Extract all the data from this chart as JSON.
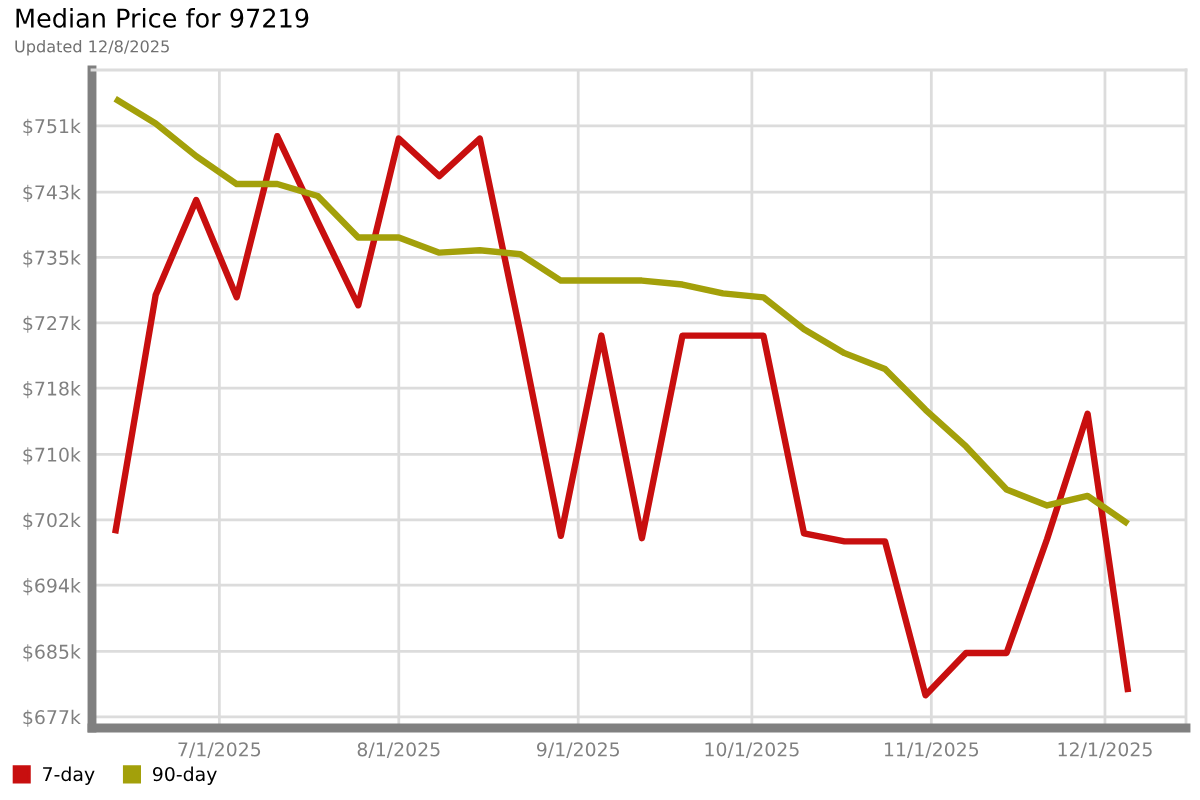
{
  "chart_data": {
    "type": "line",
    "title": "Median Price for 97219",
    "subtitle": "Updated 12/8/2025",
    "x": [
      "2025-06-13",
      "2025-06-20",
      "2025-06-27",
      "2025-07-04",
      "2025-07-11",
      "2025-07-18",
      "2025-07-25",
      "2025-08-01",
      "2025-08-08",
      "2025-08-15",
      "2025-08-22",
      "2025-08-29",
      "2025-09-05",
      "2025-09-12",
      "2025-09-19",
      "2025-09-26",
      "2025-10-03",
      "2025-10-10",
      "2025-10-17",
      "2025-10-24",
      "2025-10-31",
      "2025-11-07",
      "2025-11-14",
      "2025-11-21",
      "2025-11-28",
      "2025-12-05"
    ],
    "series": [
      {
        "name": "7-day",
        "color": "#c80f0f",
        "values": [
          700.2,
          730.1,
          742.0,
          729.8,
          750.0,
          739.3,
          728.8,
          749.7,
          745.0,
          749.7,
          725.3,
          699.9,
          725.0,
          699.6,
          725.0,
          725.0,
          725.0,
          700.2,
          699.2,
          699.2,
          679.9,
          685.2,
          685.2,
          699.5,
          715.2,
          680.3
        ]
      },
      {
        "name": "90-day",
        "color": "#a3a00a",
        "values": [
          754.7,
          751.6,
          747.5,
          744.0,
          744.0,
          742.5,
          737.3,
          737.3,
          735.4,
          735.7,
          735.2,
          731.9,
          731.9,
          731.9,
          731.4,
          730.3,
          729.8,
          725.8,
          722.8,
          720.8,
          715.7,
          711.1,
          705.7,
          703.7,
          704.9,
          701.4
        ]
      }
    ],
    "xlim": [
      "2025-06-09",
      "2025-12-15"
    ],
    "xticks": [
      {
        "value": "2025-07-01",
        "label": "7/1/2025"
      },
      {
        "value": "2025-08-01",
        "label": "8/1/2025"
      },
      {
        "value": "2025-09-01",
        "label": "9/1/2025"
      },
      {
        "value": "2025-10-01",
        "label": "10/1/2025"
      },
      {
        "value": "2025-11-01",
        "label": "11/1/2025"
      },
      {
        "value": "2025-12-01",
        "label": "12/1/2025"
      }
    ],
    "ylim": [
      675.8,
      758.3
    ],
    "yticks": [
      {
        "value": 677.2,
        "label": "$677k"
      },
      {
        "value": 685.4,
        "label": "$685k"
      },
      {
        "value": 693.7,
        "label": "$694k"
      },
      {
        "value": 701.9,
        "label": "$702k"
      },
      {
        "value": 710.1,
        "label": "$710k"
      },
      {
        "value": 718.4,
        "label": "$718k"
      },
      {
        "value": 726.6,
        "label": "$727k"
      },
      {
        "value": 734.8,
        "label": "$735k"
      },
      {
        "value": 743.0,
        "label": "$743k"
      },
      {
        "value": 751.3,
        "label": "$751k"
      }
    ],
    "grid": true,
    "legend": "bottom",
    "line_style": "solid"
  }
}
